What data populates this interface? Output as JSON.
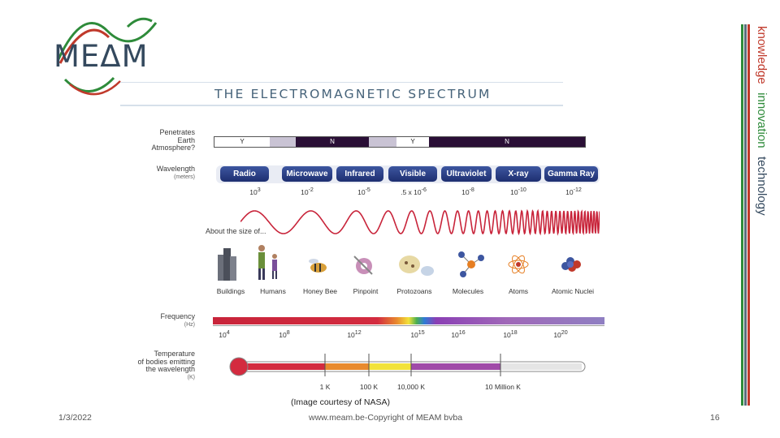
{
  "logo": {
    "text": "MEΔM"
  },
  "branding": {
    "words": [
      "knowledge",
      "innovation",
      "technology"
    ]
  },
  "figure": {
    "title": "THE ELECTROMAGNETIC SPECTRUM",
    "penetrates_label": [
      "Penetrates",
      "Earth",
      "Atmosphere?"
    ],
    "penetrates_cells": [
      "Y",
      "N",
      "Y",
      "N"
    ],
    "wavelength_label": "Wavelength",
    "wavelength_unit": "(meters)",
    "bands": [
      "Radio",
      "Microwave",
      "Infrared",
      "Visible",
      "Ultraviolet",
      "X-ray",
      "Gamma Ray"
    ],
    "wavelength_ticks": [
      {
        "base": "10",
        "exp": "3"
      },
      {
        "base": "10",
        "exp": "-2"
      },
      {
        "base": "10",
        "exp": "-5"
      },
      {
        "base": ".5 x 10",
        "exp": "-6"
      },
      {
        "base": "10",
        "exp": "-8"
      },
      {
        "base": "10",
        "exp": "-10"
      },
      {
        "base": "10",
        "exp": "-12"
      }
    ],
    "about_size_label": "About the size of...",
    "objects": [
      "Buildings",
      "Humans",
      "Honey Bee",
      "Pinpoint",
      "Protozoans",
      "Molecules",
      "Atoms",
      "Atomic Nuclei"
    ],
    "frequency_label": "Frequency",
    "frequency_unit": "(Hz)",
    "frequency_ticks": [
      {
        "base": "10",
        "exp": "4"
      },
      {
        "base": "10",
        "exp": "8"
      },
      {
        "base": "10",
        "exp": "12"
      },
      {
        "base": "10",
        "exp": "15"
      },
      {
        "base": "10",
        "exp": "16"
      },
      {
        "base": "10",
        "exp": "18"
      },
      {
        "base": "10",
        "exp": "20"
      }
    ],
    "temperature_label": [
      "Temperature",
      "of bodies emitting",
      "the wavelength"
    ],
    "temperature_unit": "(K)",
    "temperature_ticks": [
      "1 K",
      "100 K",
      "10,000 K",
      "10 Million K"
    ]
  },
  "caption": "(Image courtesy of NASA)",
  "footer": {
    "date": "1/3/2022",
    "center": "www.meam.be-Copyright of MEAM bvba",
    "page": "16"
  }
}
